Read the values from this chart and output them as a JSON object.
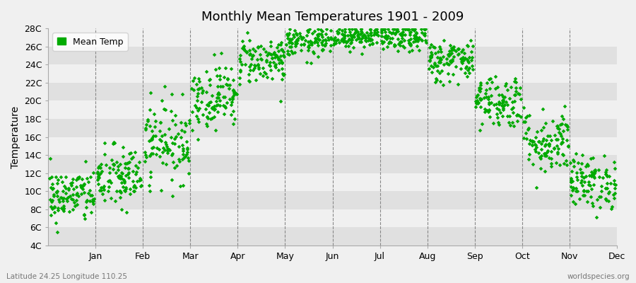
{
  "title": "Monthly Mean Temperatures 1901 - 2009",
  "ylabel": "Temperature",
  "bottom_left_text": "Latitude 24.25 Longitude 110.25",
  "bottom_right_text": "worldspecies.org",
  "legend_label": "Mean Temp",
  "fig_bg_color": "#f0f0f0",
  "plot_bg_color": "#ffffff",
  "band_color_light": "#f0f0f0",
  "band_color_dark": "#e0e0e0",
  "dot_color": "#00aa00",
  "dot_size": 8,
  "ylim": [
    4,
    28
  ],
  "yticks": [
    4,
    6,
    8,
    10,
    12,
    14,
    16,
    18,
    20,
    22,
    24,
    26,
    28
  ],
  "ytick_labels": [
    "4C",
    "6C",
    "8C",
    "10C",
    "12C",
    "14C",
    "16C",
    "18C",
    "20C",
    "22C",
    "24C",
    "26C",
    "28C"
  ],
  "months": [
    "Jan",
    "Feb",
    "Mar",
    "Apr",
    "May",
    "Jun",
    "Jul",
    "Aug",
    "Sep",
    "Oct",
    "Nov",
    "Dec"
  ],
  "month_mean_temps": [
    9.5,
    11.5,
    15.5,
    20.5,
    24.5,
    26.5,
    27.2,
    27.0,
    24.5,
    20.0,
    15.5,
    11.0
  ],
  "month_std_temps": [
    1.5,
    1.8,
    2.2,
    1.8,
    1.3,
    0.8,
    0.7,
    0.8,
    1.2,
    1.5,
    1.8,
    1.5
  ],
  "n_years": 109
}
